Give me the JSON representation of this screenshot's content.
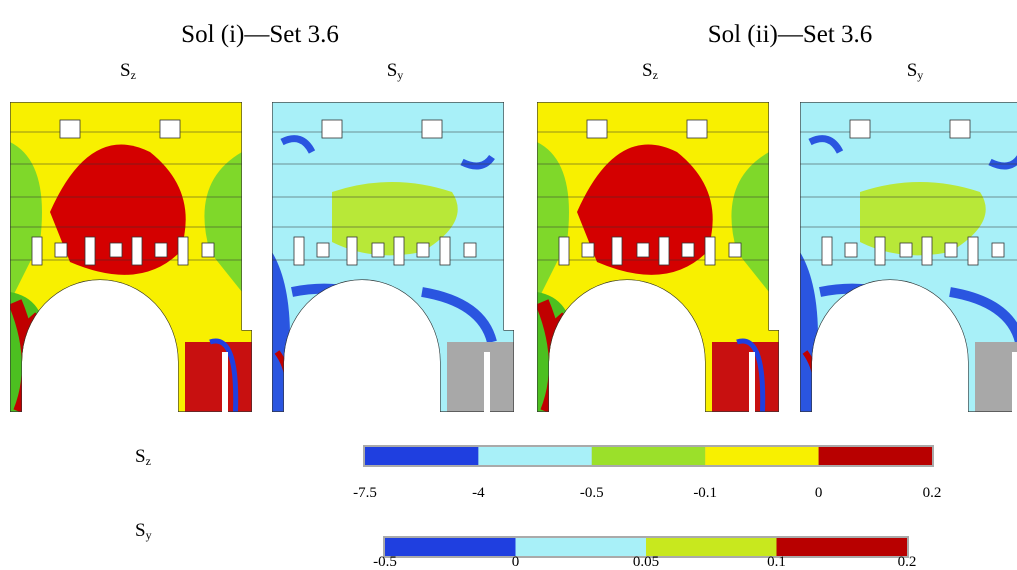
{
  "panels": [
    {
      "title": "Sol (i)—Set 3.6",
      "plots": [
        {
          "symbol": "S",
          "subscript": "z"
        },
        {
          "symbol": "S",
          "subscript": "y"
        }
      ]
    },
    {
      "title": "Sol (ii)—Set 3.6",
      "plots": [
        {
          "symbol": "S",
          "subscript": "z"
        },
        {
          "symbol": "S",
          "subscript": "y"
        }
      ]
    }
  ],
  "legends": [
    {
      "symbol": "S",
      "subscript": "z",
      "colors": [
        "#1f3fe0",
        "#a8f0f8",
        "#9be02a",
        "#f8f000",
        "#b80000"
      ],
      "ticks": [
        "-7.5",
        "-4",
        "-0.5",
        "-0.1",
        "0",
        "0.2"
      ]
    },
    {
      "symbol": "S",
      "subscript": "y",
      "colors": [
        "#1f3fe0",
        "#a8f0f8",
        "#c8e81e",
        "#b80000"
      ],
      "ticks": [
        "-0.5",
        "0",
        "0.05",
        "0.1",
        "0.2"
      ]
    }
  ]
}
